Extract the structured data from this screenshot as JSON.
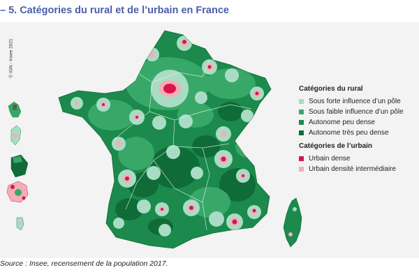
{
  "title": "– 5. Catégories du rural et de l’urbain en France",
  "copyright": "© IGN - Insee 2021",
  "source": "Source : Insee, recensement de la population 2017.",
  "colors": {
    "sous_forte": "#a9dcc4",
    "sous_faible": "#38a868",
    "autonome_peu": "#1b8a4c",
    "autonome_tres_peu": "#0f6b38",
    "urbain_dense": "#d6164d",
    "urbain_intermediaire": "#f2aeb7",
    "background": "#f3f3f3",
    "title": "#4a5eaa"
  },
  "legend": {
    "rural_heading": "Catégories du rural",
    "rural_items": [
      {
        "label": "Sous forte influence d’un pôle",
        "color": "#a9dcc4"
      },
      {
        "label": "Sous faible influence d’un pôle",
        "color": "#38a868"
      },
      {
        "label": "Autonome peu dense",
        "color": "#1b8a4c"
      },
      {
        "label": "Autonome très peu dense",
        "color": "#0f6b38"
      }
    ],
    "urban_heading": "Catégories de l’urbain",
    "urban_items": [
      {
        "label": "Urbain dense",
        "color": "#d6164d"
      },
      {
        "label": "Urbain densité intermédiaire",
        "color": "#f2aeb7"
      }
    ]
  }
}
